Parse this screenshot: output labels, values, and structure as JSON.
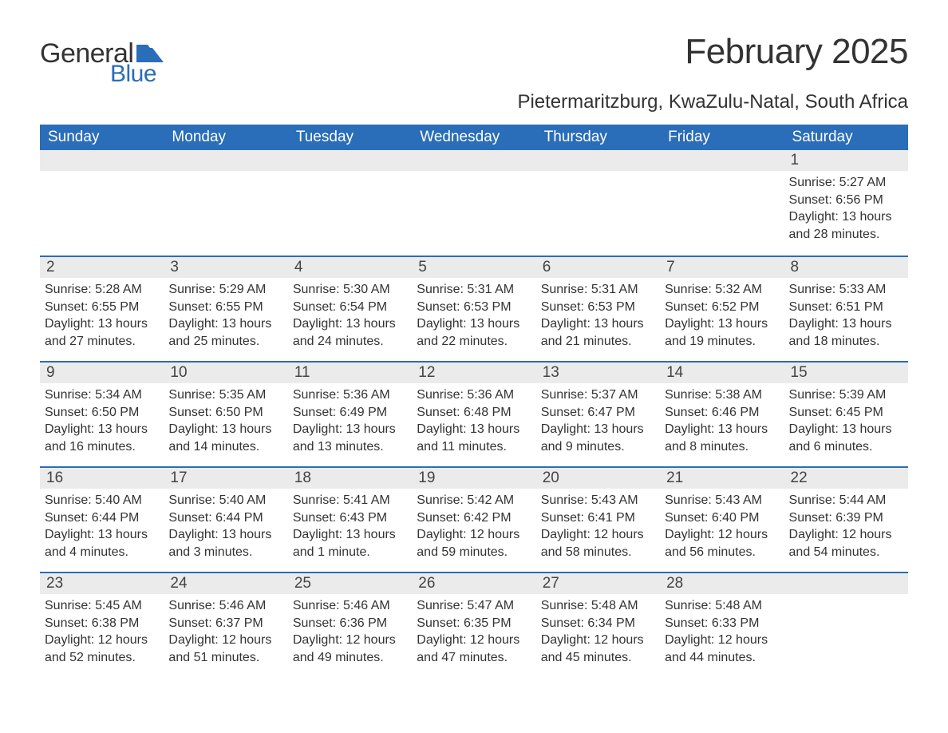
{
  "brand": {
    "word1": "General",
    "word2": "Blue",
    "flag_color": "#2a6db8"
  },
  "title": "February 2025",
  "location": "Pietermaritzburg, KwaZulu-Natal, South Africa",
  "colors": {
    "header_bg": "#2a6db8",
    "band_bg": "#ebebeb",
    "text": "#333333",
    "white": "#ffffff"
  },
  "weekdays": [
    "Sunday",
    "Monday",
    "Tuesday",
    "Wednesday",
    "Thursday",
    "Friday",
    "Saturday"
  ],
  "weeks": [
    [
      null,
      null,
      null,
      null,
      null,
      null,
      {
        "n": "1",
        "sr": "5:27 AM",
        "ss": "6:56 PM",
        "dl": "13 hours and 28 minutes."
      }
    ],
    [
      {
        "n": "2",
        "sr": "5:28 AM",
        "ss": "6:55 PM",
        "dl": "13 hours and 27 minutes."
      },
      {
        "n": "3",
        "sr": "5:29 AM",
        "ss": "6:55 PM",
        "dl": "13 hours and 25 minutes."
      },
      {
        "n": "4",
        "sr": "5:30 AM",
        "ss": "6:54 PM",
        "dl": "13 hours and 24 minutes."
      },
      {
        "n": "5",
        "sr": "5:31 AM",
        "ss": "6:53 PM",
        "dl": "13 hours and 22 minutes."
      },
      {
        "n": "6",
        "sr": "5:31 AM",
        "ss": "6:53 PM",
        "dl": "13 hours and 21 minutes."
      },
      {
        "n": "7",
        "sr": "5:32 AM",
        "ss": "6:52 PM",
        "dl": "13 hours and 19 minutes."
      },
      {
        "n": "8",
        "sr": "5:33 AM",
        "ss": "6:51 PM",
        "dl": "13 hours and 18 minutes."
      }
    ],
    [
      {
        "n": "9",
        "sr": "5:34 AM",
        "ss": "6:50 PM",
        "dl": "13 hours and 16 minutes."
      },
      {
        "n": "10",
        "sr": "5:35 AM",
        "ss": "6:50 PM",
        "dl": "13 hours and 14 minutes."
      },
      {
        "n": "11",
        "sr": "5:36 AM",
        "ss": "6:49 PM",
        "dl": "13 hours and 13 minutes."
      },
      {
        "n": "12",
        "sr": "5:36 AM",
        "ss": "6:48 PM",
        "dl": "13 hours and 11 minutes."
      },
      {
        "n": "13",
        "sr": "5:37 AM",
        "ss": "6:47 PM",
        "dl": "13 hours and 9 minutes."
      },
      {
        "n": "14",
        "sr": "5:38 AM",
        "ss": "6:46 PM",
        "dl": "13 hours and 8 minutes."
      },
      {
        "n": "15",
        "sr": "5:39 AM",
        "ss": "6:45 PM",
        "dl": "13 hours and 6 minutes."
      }
    ],
    [
      {
        "n": "16",
        "sr": "5:40 AM",
        "ss": "6:44 PM",
        "dl": "13 hours and 4 minutes."
      },
      {
        "n": "17",
        "sr": "5:40 AM",
        "ss": "6:44 PM",
        "dl": "13 hours and 3 minutes."
      },
      {
        "n": "18",
        "sr": "5:41 AM",
        "ss": "6:43 PM",
        "dl": "13 hours and 1 minute."
      },
      {
        "n": "19",
        "sr": "5:42 AM",
        "ss": "6:42 PM",
        "dl": "12 hours and 59 minutes."
      },
      {
        "n": "20",
        "sr": "5:43 AM",
        "ss": "6:41 PM",
        "dl": "12 hours and 58 minutes."
      },
      {
        "n": "21",
        "sr": "5:43 AM",
        "ss": "6:40 PM",
        "dl": "12 hours and 56 minutes."
      },
      {
        "n": "22",
        "sr": "5:44 AM",
        "ss": "6:39 PM",
        "dl": "12 hours and 54 minutes."
      }
    ],
    [
      {
        "n": "23",
        "sr": "5:45 AM",
        "ss": "6:38 PM",
        "dl": "12 hours and 52 minutes."
      },
      {
        "n": "24",
        "sr": "5:46 AM",
        "ss": "6:37 PM",
        "dl": "12 hours and 51 minutes."
      },
      {
        "n": "25",
        "sr": "5:46 AM",
        "ss": "6:36 PM",
        "dl": "12 hours and 49 minutes."
      },
      {
        "n": "26",
        "sr": "5:47 AM",
        "ss": "6:35 PM",
        "dl": "12 hours and 47 minutes."
      },
      {
        "n": "27",
        "sr": "5:48 AM",
        "ss": "6:34 PM",
        "dl": "12 hours and 45 minutes."
      },
      {
        "n": "28",
        "sr": "5:48 AM",
        "ss": "6:33 PM",
        "dl": "12 hours and 44 minutes."
      },
      null
    ]
  ],
  "labels": {
    "sunrise": "Sunrise: ",
    "sunset": "Sunset: ",
    "daylight": "Daylight: "
  }
}
